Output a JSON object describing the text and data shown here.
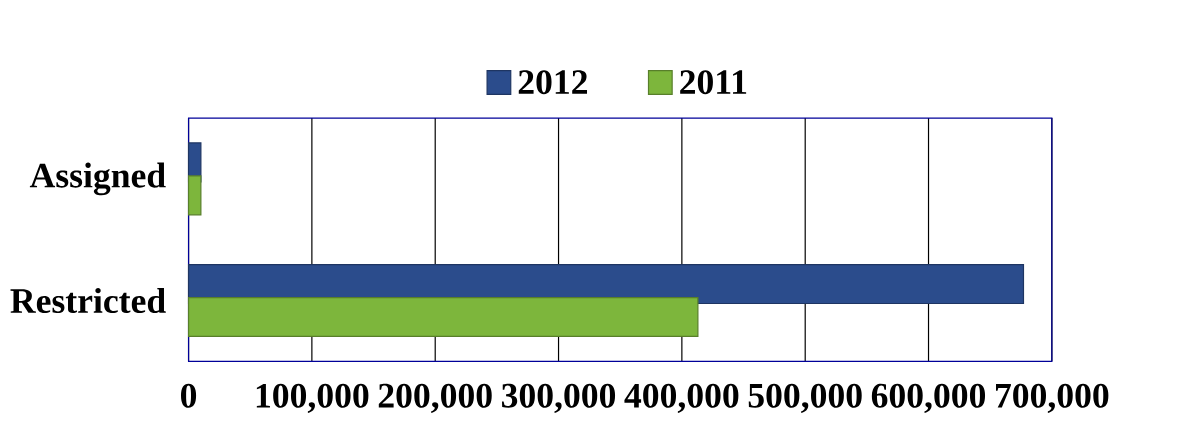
{
  "chart_data": {
    "type": "bar",
    "orientation": "horizontal",
    "categories": [
      "Assigned",
      "Restricted"
    ],
    "series": [
      {
        "name": "2012",
        "color": "#2b4c8c",
        "values": [
          10000,
          677000
        ]
      },
      {
        "name": "2011",
        "color": "#7db63c",
        "values": [
          10000,
          413000
        ]
      }
    ],
    "xlim": [
      0,
      700000
    ],
    "xticks": [
      {
        "value": 0,
        "label": "0"
      },
      {
        "value": 100000,
        "label": "100,000"
      },
      {
        "value": 200000,
        "label": "200,000"
      },
      {
        "value": 300000,
        "label": "300,000"
      },
      {
        "value": 400000,
        "label": "400,000"
      },
      {
        "value": 500000,
        "label": "500,000"
      },
      {
        "value": 600000,
        "label": "600,000"
      },
      {
        "value": 700000,
        "label": "700,000"
      }
    ],
    "grid": "x",
    "legend": "top"
  }
}
